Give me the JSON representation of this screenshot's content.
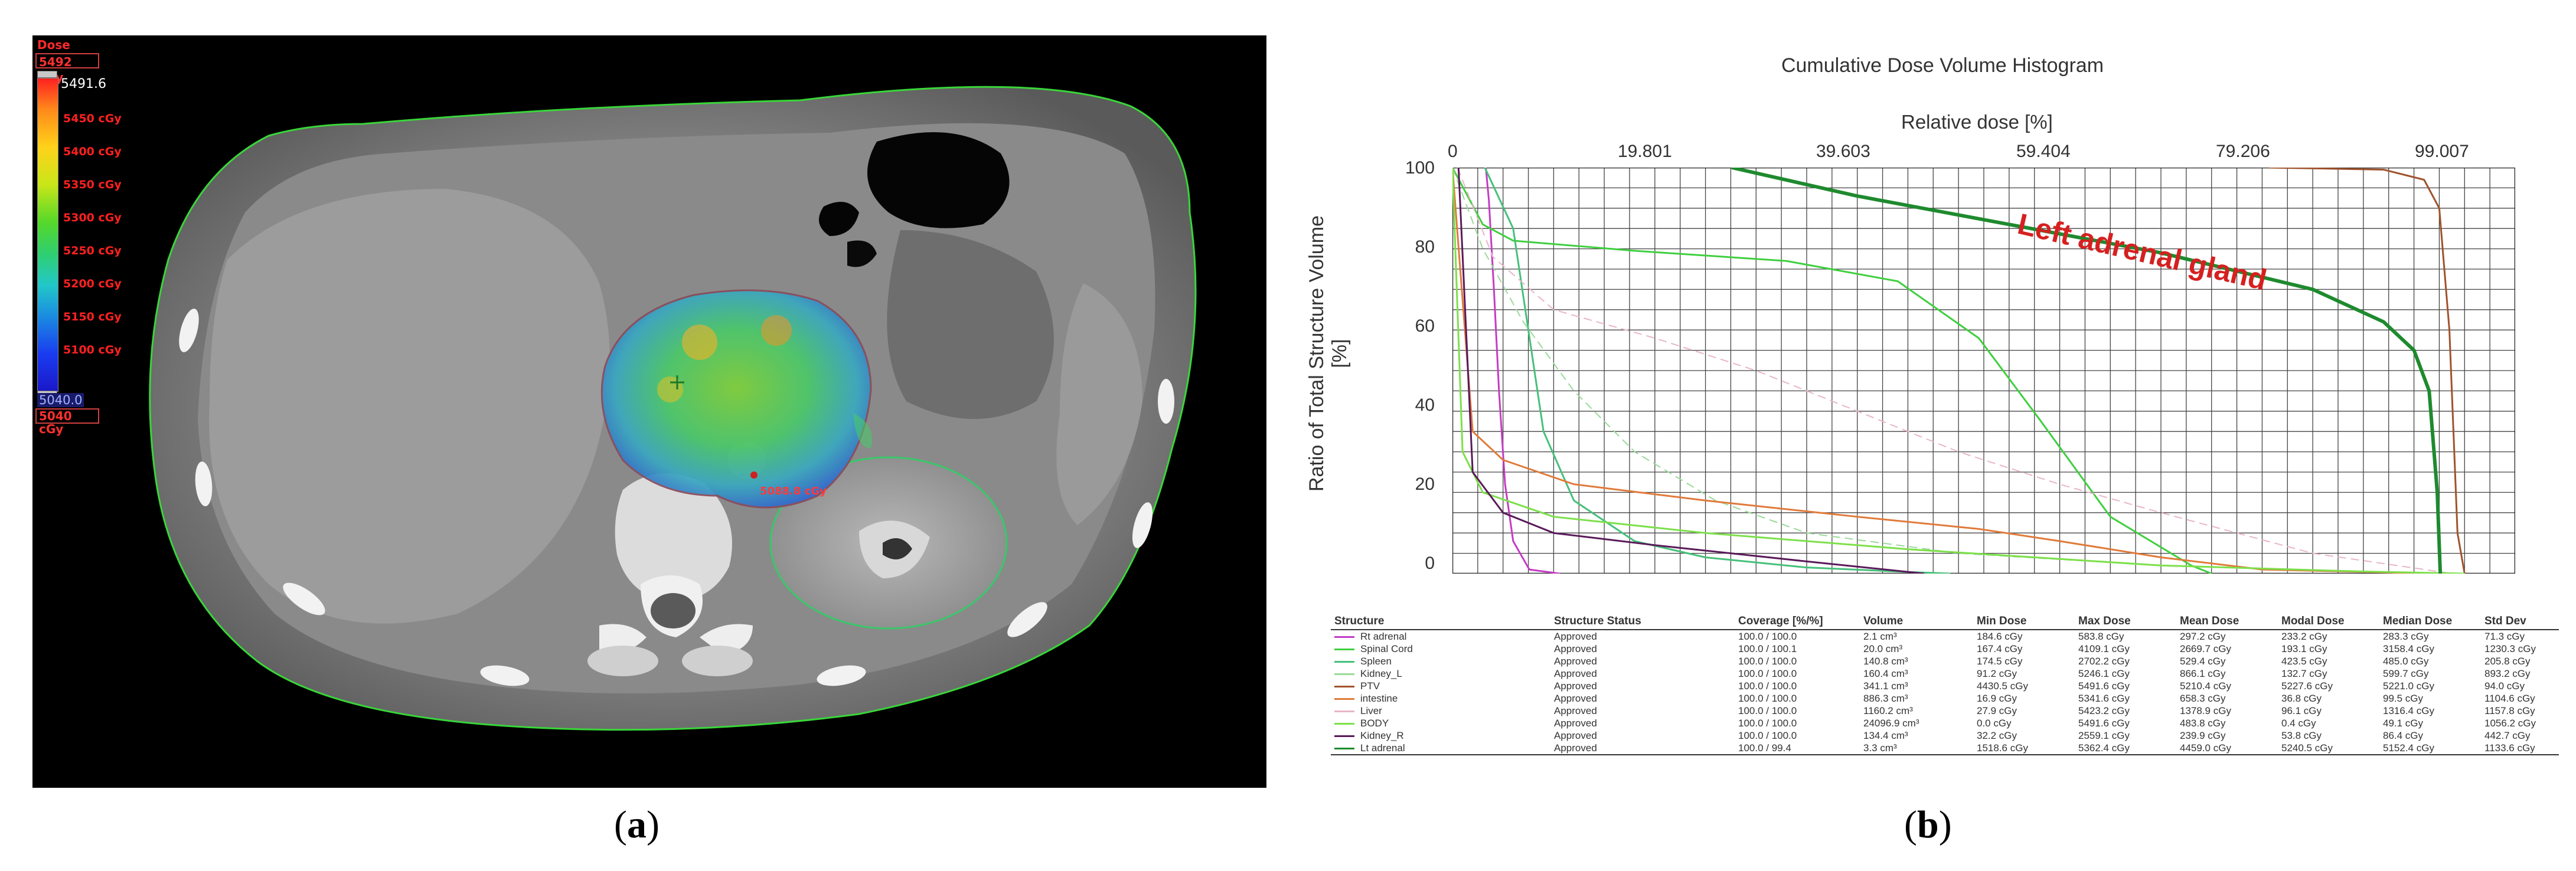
{
  "panel_a": {
    "caption_open": "(",
    "caption_letter": "a",
    "caption_close": ")",
    "dose_title": "Dose",
    "max_box": "5492 cGy",
    "max_value": "5491.6",
    "min_value": "5040.0",
    "min_box": "5040 cGy",
    "colorbar_ticks": [
      "5450 cGy",
      "5400 cGy",
      "5350 cGy",
      "5300 cGy",
      "5250 cGy",
      "5200 cGy",
      "5150 cGy",
      "5100 cGy"
    ],
    "dose_point": "5088.8 cGy"
  },
  "panel_b": {
    "caption_open": "(",
    "caption_letter": "b",
    "caption_close": ")",
    "title": "Cumulative Dose Volume Histogram",
    "top_axis_title": "Relative dose [%]",
    "top_ticks": [
      "0",
      "19.801",
      "39.603",
      "59.404",
      "79.206",
      "99.007"
    ],
    "y_axis_title": "Ratio of Total Structure Volume [%]",
    "y_ticks": [
      "100",
      "80",
      "60",
      "40",
      "20",
      "0"
    ],
    "annotation": "Left adrenal gland",
    "columns": [
      "Structure",
      "Structure Status",
      "Coverage [%/%]",
      "Volume",
      "Min Dose",
      "Max Dose",
      "Mean Dose",
      "Modal Dose",
      "Median Dose",
      "Std Dev"
    ],
    "rows": [
      {
        "color": "#c43cc4",
        "cells": [
          "Rt adrenal",
          "Approved",
          "100.0 / 100.0",
          "2.1 cm³",
          "184.6 cGy",
          "583.8 cGy",
          "297.2 cGy",
          "233.2 cGy",
          "283.3 cGy",
          "71.3 cGy"
        ]
      },
      {
        "color": "#3fcf3f",
        "cells": [
          "Spinal Cord",
          "Approved",
          "100.0 / 100.1",
          "20.0 cm³",
          "167.4 cGy",
          "4109.1 cGy",
          "2669.7 cGy",
          "193.1 cGy",
          "3158.4 cGy",
          "1230.3 cGy"
        ]
      },
      {
        "color": "#45c07a",
        "cells": [
          "Spleen",
          "Approved",
          "100.0 / 100.0",
          "140.8 cm³",
          "174.5 cGy",
          "2702.2 cGy",
          "529.4 cGy",
          "423.5 cGy",
          "485.0 cGy",
          "205.8 cGy"
        ]
      },
      {
        "color": "#9ad99a",
        "cells": [
          "Kidney_L",
          "Approved",
          "100.0 / 100.0",
          "160.4 cm³",
          "91.2 cGy",
          "5246.1 cGy",
          "866.1 cGy",
          "132.7 cGy",
          "599.7 cGy",
          "893.2 cGy"
        ]
      },
      {
        "color": "#a0522d",
        "cells": [
          "PTV",
          "Approved",
          "100.0 / 100.0",
          "341.1 cm³",
          "4430.5 cGy",
          "5491.6 cGy",
          "5210.4 cGy",
          "5227.6 cGy",
          "5221.0 cGy",
          "94.0 cGy"
        ]
      },
      {
        "color": "#e07a3a",
        "cells": [
          "intestine",
          "Approved",
          "100.0 / 100.0",
          "886.3 cm³",
          "16.9 cGy",
          "5341.6 cGy",
          "658.3 cGy",
          "36.8 cGy",
          "99.5 cGy",
          "1104.6 cGy"
        ]
      },
      {
        "color": "#e8b6c8",
        "cells": [
          "Liver",
          "Approved",
          "100.0 / 100.0",
          "1160.2 cm³",
          "27.9 cGy",
          "5423.2 cGy",
          "1378.9 cGy",
          "96.1 cGy",
          "1316.4 cGy",
          "1157.8 cGy"
        ]
      },
      {
        "color": "#7ce04a",
        "cells": [
          "BODY",
          "Approved",
          "100.0 / 100.0",
          "24096.9 cm³",
          "0.0 cGy",
          "5491.6 cGy",
          "483.8 cGy",
          "0.4 cGy",
          "49.1 cGy",
          "1056.2 cGy"
        ]
      },
      {
        "color": "#5a1a5a",
        "cells": [
          "Kidney_R",
          "Approved",
          "100.0 / 100.0",
          "134.4 cm³",
          "32.2 cGy",
          "2559.1 cGy",
          "239.9 cGy",
          "53.8 cGy",
          "86.4 cGy",
          "442.7 cGy"
        ]
      },
      {
        "color": "#1e8a2e",
        "cells": [
          "Lt adrenal",
          "Approved",
          "100.0 / 99.4",
          "3.3 cm³",
          "1518.6 cGy",
          "5362.4 cGy",
          "4459.0 cGy",
          "5240.5 cGy",
          "5152.4 cGy",
          "1133.6 cGy"
        ]
      }
    ]
  },
  "chart_data": {
    "type": "line",
    "title": "Cumulative Dose Volume Histogram",
    "xlabel": "Relative dose [%]",
    "ylabel": "Ratio of Total Structure Volume [%]",
    "xlim": [
      0,
      105
    ],
    "ylim": [
      0,
      100
    ],
    "x_ticks": [
      0,
      19.801,
      39.603,
      59.404,
      79.206,
      99.007
    ],
    "y_ticks": [
      0,
      20,
      40,
      60,
      80,
      100
    ],
    "grid": true,
    "series": [
      {
        "name": "Rt adrenal",
        "color": "#c43cc4",
        "width": 3,
        "x": [
          3.3,
          3.6,
          4.1,
          4.6,
          5.2,
          6.0,
          7.6,
          10.6
        ],
        "y": [
          100,
          92,
          70,
          45,
          22,
          8,
          1,
          0
        ]
      },
      {
        "name": "Spinal Cord",
        "color": "#3fcf3f",
        "width": 3,
        "x": [
          0,
          3.0,
          6.0,
          18,
          33,
          44,
          52,
          58,
          65,
          73,
          75
        ],
        "y": [
          100,
          86,
          82,
          79.5,
          77,
          72,
          58,
          38,
          14,
          2,
          0
        ]
      },
      {
        "name": "Spleen",
        "color": "#45c07a",
        "width": 3,
        "x": [
          3.2,
          6,
          7.5,
          9,
          12,
          18,
          25,
          35,
          45,
          49.2
        ],
        "y": [
          100,
          85,
          60,
          35,
          18,
          8,
          4,
          1.5,
          0.4,
          0
        ]
      },
      {
        "name": "Kidney_L",
        "color": "#9ad99a",
        "width": 2,
        "dash": true,
        "x": [
          0,
          3,
          7,
          12,
          18,
          26,
          35,
          50,
          70,
          95.5
        ],
        "y": [
          100,
          80,
          62,
          45,
          30,
          18,
          10,
          5,
          2,
          0
        ]
      },
      {
        "name": "PTV",
        "color": "#a0522d",
        "width": 3,
        "x": [
          80.7,
          92,
          96,
          97.5,
          98.5,
          99.3,
          100
        ],
        "y": [
          100,
          99.5,
          97,
          90,
          60,
          10,
          0
        ]
      },
      {
        "name": "intestine",
        "color": "#e07a3a",
        "width": 3,
        "x": [
          0,
          2,
          5,
          12,
          25,
          40,
          52,
          60,
          70,
          80,
          97.3
        ],
        "y": [
          100,
          35,
          28,
          22,
          18,
          14,
          11,
          8,
          4,
          1,
          0
        ]
      },
      {
        "name": "Liver",
        "color": "#e8b6c8",
        "width": 2,
        "dash": true,
        "x": [
          0.5,
          4,
          10,
          20,
          30,
          40,
          50,
          60,
          70,
          85,
          98.8
        ],
        "y": [
          100,
          78,
          65,
          58,
          50,
          40,
          30,
          22,
          15,
          5,
          0
        ]
      },
      {
        "name": "BODY",
        "color": "#7ce04a",
        "width": 3,
        "x": [
          0,
          1,
          3,
          10,
          25,
          45,
          70,
          90,
          100
        ],
        "y": [
          100,
          30,
          20,
          14,
          10,
          6,
          2,
          0.5,
          0
        ]
      },
      {
        "name": "Kidney_R",
        "color": "#5a1a5a",
        "width": 3,
        "x": [
          0.6,
          2,
          5,
          10,
          20,
          35,
          46.6
        ],
        "y": [
          100,
          25,
          15,
          10,
          7,
          3,
          0
        ]
      },
      {
        "name": "Lt adrenal",
        "color": "#1e8a2e",
        "width": 6,
        "x": [
          27.6,
          40,
          55,
          70,
          85,
          92,
          95,
          96.5,
          97.3,
          97.6
        ],
        "y": [
          100,
          93,
          86,
          79,
          70,
          62,
          55,
          45,
          20,
          0
        ]
      }
    ]
  }
}
